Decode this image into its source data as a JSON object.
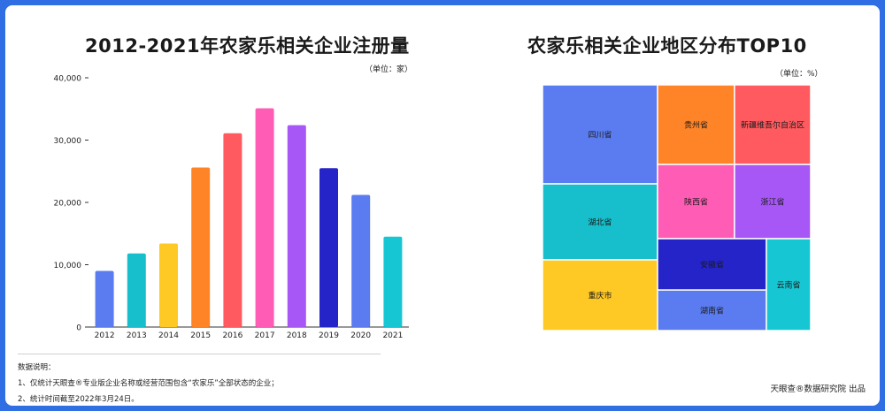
{
  "left_chart": {
    "title": "2012-2021年农家乐相关企业注册量",
    "unit": "（单位：家）"
  },
  "right_chart": {
    "title": "农家乐相关企业地区分布TOP10",
    "unit": "（单位：%）"
  },
  "notes": {
    "heading": "数据说明：",
    "line1": "1、仅统计天眼查®专业版企业名称或经营范围包含“农家乐”全部状态的企业；",
    "line2": "2、统计时间截至2022年3月24日。"
  },
  "credit": "天眼查®数据研究院 出品",
  "chart_data": [
    {
      "type": "bar",
      "title": "2012-2021年农家乐相关企业注册量",
      "categories": [
        "2012",
        "2013",
        "2014",
        "2015",
        "2016",
        "2017",
        "2018",
        "2019",
        "2020",
        "2021"
      ],
      "values": [
        9000,
        11800,
        13400,
        25600,
        31100,
        35100,
        32400,
        25500,
        21200,
        14500
      ],
      "colors": [
        "#5a7cf0",
        "#16bfcb",
        "#ffc925",
        "#ff8427",
        "#ff5a5f",
        "#ff5db5",
        "#a657f5",
        "#2424c8",
        "#5a7cf0",
        "#16c7d3"
      ],
      "ylim": [
        0,
        40000
      ],
      "yticks": [
        0,
        10000,
        20000,
        30000,
        40000
      ],
      "ytick_labels": [
        "0",
        "10,000",
        "20,000",
        "30,000",
        "40,000"
      ],
      "grid": false
    },
    {
      "type": "treemap",
      "title": "农家乐相关企业地区分布TOP10",
      "items": [
        {
          "name": "四川省",
          "color": "#5a7cf0"
        },
        {
          "name": "湖北省",
          "color": "#16bfcb"
        },
        {
          "name": "重庆市",
          "color": "#ffc925"
        },
        {
          "name": "贵州省",
          "color": "#ff8427"
        },
        {
          "name": "新疆维吾尔自治区",
          "color": "#ff5a5f"
        },
        {
          "name": "陕西省",
          "color": "#ff5db5"
        },
        {
          "name": "浙江省",
          "color": "#a657f5"
        },
        {
          "name": "安徽省",
          "color": "#2424c8"
        },
        {
          "name": "湖南省",
          "color": "#5a7cf0"
        },
        {
          "name": "云南省",
          "color": "#16c7d3"
        }
      ]
    }
  ]
}
